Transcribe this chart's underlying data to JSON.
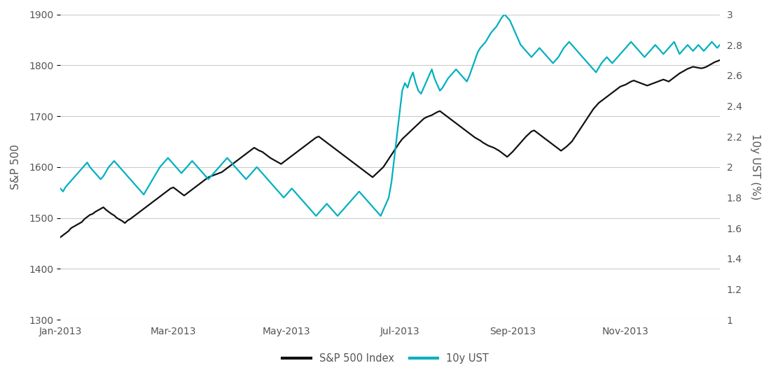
{
  "ylabel_left": "S&P 500",
  "ylabel_right": "10y UST (%)",
  "ylim_left": [
    1300,
    1900
  ],
  "ylim_right": [
    1.0,
    3.0
  ],
  "yticks_left": [
    1300,
    1400,
    1500,
    1600,
    1700,
    1800,
    1900
  ],
  "yticks_right": [
    1.0,
    1.2,
    1.4,
    1.6,
    1.8,
    2.0,
    2.2,
    2.4,
    2.6,
    2.8,
    3.0
  ],
  "xtick_labels": [
    "Jan-2013",
    "Mar-2013",
    "May-2013",
    "Jul-2013",
    "Sep-2013",
    "Nov-2013"
  ],
  "sp500_color": "#111111",
  "ust_color": "#00b0c0",
  "legend_sp500": "S&P 500 Index",
  "legend_ust": "10y UST",
  "background_color": "#ffffff",
  "grid_color": "#cccccc",
  "sp500": [
    1462,
    1466,
    1470,
    1474,
    1480,
    1483,
    1486,
    1489,
    1492,
    1498,
    1502,
    1506,
    1508,
    1512,
    1515,
    1518,
    1521,
    1516,
    1512,
    1508,
    1505,
    1500,
    1497,
    1494,
    1490,
    1495,
    1498,
    1502,
    1506,
    1510,
    1514,
    1518,
    1522,
    1526,
    1530,
    1534,
    1538,
    1542,
    1546,
    1550,
    1554,
    1558,
    1560,
    1556,
    1552,
    1548,
    1544,
    1548,
    1552,
    1556,
    1560,
    1564,
    1568,
    1572,
    1576,
    1580,
    1582,
    1584,
    1586,
    1588,
    1590,
    1594,
    1598,
    1602,
    1606,
    1610,
    1614,
    1618,
    1622,
    1626,
    1630,
    1634,
    1638,
    1635,
    1632,
    1630,
    1626,
    1622,
    1618,
    1615,
    1612,
    1609,
    1606,
    1610,
    1614,
    1618,
    1622,
    1626,
    1630,
    1634,
    1638,
    1642,
    1646,
    1650,
    1654,
    1658,
    1660,
    1656,
    1652,
    1648,
    1644,
    1640,
    1636,
    1632,
    1628,
    1624,
    1620,
    1616,
    1612,
    1608,
    1604,
    1600,
    1596,
    1592,
    1588,
    1584,
    1580,
    1585,
    1590,
    1595,
    1600,
    1608,
    1616,
    1624,
    1632,
    1640,
    1648,
    1655,
    1660,
    1665,
    1670,
    1675,
    1680,
    1685,
    1690,
    1695,
    1698,
    1700,
    1702,
    1705,
    1708,
    1710,
    1706,
    1702,
    1698,
    1694,
    1690,
    1686,
    1682,
    1678,
    1674,
    1670,
    1666,
    1662,
    1658,
    1655,
    1652,
    1648,
    1645,
    1642,
    1640,
    1638,
    1635,
    1632,
    1628,
    1624,
    1620,
    1625,
    1630,
    1636,
    1642,
    1648,
    1654,
    1660,
    1665,
    1670,
    1672,
    1668,
    1664,
    1660,
    1656,
    1652,
    1648,
    1644,
    1640,
    1636,
    1632,
    1636,
    1640,
    1645,
    1650,
    1658,
    1666,
    1674,
    1682,
    1690,
    1698,
    1706,
    1714,
    1720,
    1726,
    1730,
    1734,
    1738,
    1742,
    1746,
    1750,
    1754,
    1758,
    1760,
    1762,
    1765,
    1768,
    1770,
    1768,
    1766,
    1764,
    1762,
    1760,
    1762,
    1764,
    1766,
    1768,
    1770,
    1772,
    1770,
    1768,
    1772,
    1776,
    1780,
    1784,
    1787,
    1790,
    1793,
    1795,
    1797,
    1796,
    1795,
    1794,
    1795,
    1797,
    1800,
    1803,
    1806,
    1808,
    1810,
    1812,
    1813,
    1814,
    1815,
    1812,
    1809,
    1806,
    1810,
    1815,
    1818
  ],
  "ust": [
    1.86,
    1.84,
    1.87,
    1.89,
    1.91,
    1.93,
    1.95,
    1.97,
    1.99,
    2.01,
    2.03,
    2.0,
    1.98,
    1.96,
    1.94,
    1.92,
    1.94,
    1.97,
    2.0,
    2.02,
    2.04,
    2.02,
    2.0,
    1.98,
    1.96,
    1.94,
    1.92,
    1.9,
    1.88,
    1.86,
    1.84,
    1.82,
    1.85,
    1.88,
    1.91,
    1.94,
    1.97,
    2.0,
    2.02,
    2.04,
    2.06,
    2.04,
    2.02,
    2.0,
    1.98,
    1.96,
    1.98,
    2.0,
    2.02,
    2.04,
    2.02,
    2.0,
    1.98,
    1.96,
    1.94,
    1.92,
    1.94,
    1.96,
    1.98,
    2.0,
    2.02,
    2.04,
    2.06,
    2.04,
    2.02,
    2.0,
    1.98,
    1.96,
    1.94,
    1.92,
    1.94,
    1.96,
    1.98,
    2.0,
    1.98,
    1.96,
    1.94,
    1.92,
    1.9,
    1.88,
    1.86,
    1.84,
    1.82,
    1.8,
    1.82,
    1.84,
    1.86,
    1.84,
    1.82,
    1.8,
    1.78,
    1.76,
    1.74,
    1.72,
    1.7,
    1.68,
    1.7,
    1.72,
    1.74,
    1.76,
    1.74,
    1.72,
    1.7,
    1.68,
    1.7,
    1.72,
    1.74,
    1.76,
    1.78,
    1.8,
    1.82,
    1.84,
    1.82,
    1.8,
    1.78,
    1.76,
    1.74,
    1.72,
    1.7,
    1.68,
    1.72,
    1.76,
    1.8,
    1.9,
    2.05,
    2.2,
    2.35,
    2.5,
    2.55,
    2.52,
    2.58,
    2.62,
    2.55,
    2.5,
    2.48,
    2.52,
    2.56,
    2.6,
    2.64,
    2.58,
    2.54,
    2.5,
    2.52,
    2.55,
    2.58,
    2.6,
    2.62,
    2.64,
    2.62,
    2.6,
    2.58,
    2.56,
    2.6,
    2.65,
    2.7,
    2.75,
    2.78,
    2.8,
    2.82,
    2.85,
    2.88,
    2.9,
    2.92,
    2.95,
    2.98,
    3.0,
    2.98,
    2.96,
    2.92,
    2.88,
    2.84,
    2.8,
    2.78,
    2.76,
    2.74,
    2.72,
    2.74,
    2.76,
    2.78,
    2.76,
    2.74,
    2.72,
    2.7,
    2.68,
    2.7,
    2.72,
    2.75,
    2.78,
    2.8,
    2.82,
    2.8,
    2.78,
    2.76,
    2.74,
    2.72,
    2.7,
    2.68,
    2.66,
    2.64,
    2.62,
    2.65,
    2.68,
    2.7,
    2.72,
    2.7,
    2.68,
    2.7,
    2.72,
    2.74,
    2.76,
    2.78,
    2.8,
    2.82,
    2.8,
    2.78,
    2.76,
    2.74,
    2.72,
    2.74,
    2.76,
    2.78,
    2.8,
    2.78,
    2.76,
    2.74,
    2.76,
    2.78,
    2.8,
    2.82,
    2.78,
    2.74,
    2.76,
    2.78,
    2.8,
    2.78,
    2.76,
    2.78,
    2.8,
    2.78,
    2.76,
    2.78,
    2.8,
    2.82,
    2.8,
    2.78,
    2.8
  ]
}
